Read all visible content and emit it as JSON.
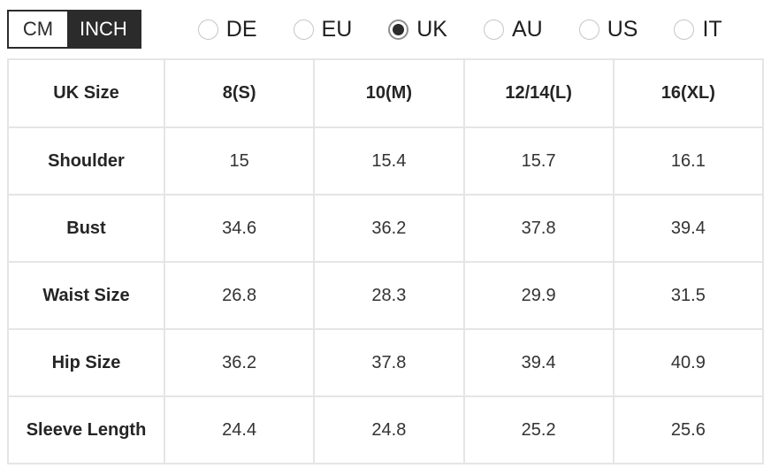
{
  "unit_toggle": {
    "options": [
      {
        "label": "CM",
        "selected": false
      },
      {
        "label": "INCH",
        "selected": true
      }
    ]
  },
  "region_options": [
    {
      "label": "DE",
      "selected": false
    },
    {
      "label": "EU",
      "selected": false
    },
    {
      "label": "UK",
      "selected": true
    },
    {
      "label": "AU",
      "selected": false
    },
    {
      "label": "US",
      "selected": false
    },
    {
      "label": "IT",
      "selected": false
    }
  ],
  "size_table": {
    "columns": [
      "UK Size",
      "8(S)",
      "10(M)",
      "12/14(L)",
      "16(XL)"
    ],
    "rows": [
      {
        "label": "Shoulder",
        "values": [
          "15",
          "15.4",
          "15.7",
          "16.1"
        ]
      },
      {
        "label": "Bust",
        "values": [
          "34.6",
          "36.2",
          "37.8",
          "39.4"
        ]
      },
      {
        "label": "Waist Size",
        "values": [
          "26.8",
          "28.3",
          "29.9",
          "31.5"
        ]
      },
      {
        "label": "Hip Size",
        "values": [
          "36.2",
          "37.8",
          "39.4",
          "40.9"
        ]
      },
      {
        "label": "Sleeve Length",
        "values": [
          "24.4",
          "24.8",
          "25.2",
          "25.6"
        ]
      }
    ]
  },
  "colors": {
    "accent_dark": "#2b2b2b",
    "table_border": "#e5e5e5",
    "text": "#333333",
    "radio_border_unselected": "#c6c6c6",
    "radio_ring_selected": "#8f8f8f"
  }
}
